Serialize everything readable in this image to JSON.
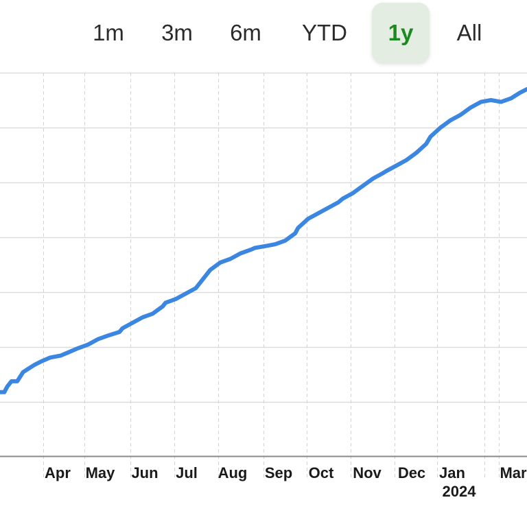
{
  "range_selector": {
    "options": [
      {
        "label": "1m",
        "active": false
      },
      {
        "label": "3m",
        "active": false
      },
      {
        "label": "6m",
        "active": false
      },
      {
        "label": "YTD",
        "active": false
      },
      {
        "label": "1y",
        "active": true
      },
      {
        "label": "All",
        "active": false
      }
    ],
    "active_color": "#1d8a21",
    "active_background": "#e3ede2"
  },
  "chart_data": {
    "type": "line",
    "title": "",
    "xlabel": "",
    "ylabel": "",
    "y_axis_labels_visible": false,
    "grid": true,
    "line_color": "#3b86e0",
    "x_tick_labels": [
      "Apr",
      "May",
      "Jun",
      "Jul",
      "Aug",
      "Sep",
      "Oct",
      "Nov",
      "Dec",
      "Jan",
      "Mar"
    ],
    "year_label": {
      "text": "2024",
      "under": "Jan"
    },
    "series": [
      {
        "x": [
          "2023-03-08",
          "2023-03-11",
          "2023-03-13",
          "2023-03-16",
          "2023-03-20",
          "2023-03-24",
          "2023-03-28",
          "2023-04-01",
          "2023-04-06",
          "2023-04-12",
          "2023-04-19",
          "2023-04-25",
          "2023-05-01",
          "2023-05-08",
          "2023-05-15",
          "2023-05-22",
          "2023-05-30",
          "2023-06-01",
          "2023-06-08",
          "2023-06-15",
          "2023-06-22",
          "2023-06-29",
          "2023-07-01",
          "2023-07-08",
          "2023-07-15",
          "2023-07-22",
          "2023-07-29",
          "2023-08-01",
          "2023-08-08",
          "2023-08-15",
          "2023-08-22",
          "2023-08-29",
          "2023-09-01",
          "2023-09-08",
          "2023-09-15",
          "2023-09-22",
          "2023-09-29",
          "2023-10-01",
          "2023-10-08",
          "2023-10-15",
          "2023-10-22",
          "2023-10-29",
          "2023-11-01",
          "2023-11-08",
          "2023-11-15",
          "2023-11-22",
          "2023-11-29",
          "2023-12-01",
          "2023-12-08",
          "2023-12-15",
          "2023-12-22",
          "2023-12-29",
          "2024-01-01",
          "2024-01-08",
          "2024-01-15",
          "2024-01-22",
          "2024-01-29",
          "2024-02-05",
          "2024-02-12",
          "2024-02-19",
          "2024-02-26",
          "2024-03-03",
          "2024-03-08"
        ],
        "y": [
          3.5,
          3.5,
          3.8,
          4.1,
          4.1,
          4.6,
          4.8,
          5.0,
          5.2,
          5.4,
          5.5,
          5.7,
          5.9,
          6.1,
          6.4,
          6.6,
          6.8,
          7.0,
          7.3,
          7.6,
          7.8,
          8.2,
          8.4,
          8.6,
          8.9,
          9.2,
          9.9,
          10.2,
          10.6,
          10.8,
          11.1,
          11.3,
          11.4,
          11.5,
          11.6,
          11.8,
          12.2,
          12.5,
          13.0,
          13.3,
          13.6,
          13.9,
          14.1,
          14.4,
          14.8,
          15.2,
          15.5,
          15.6,
          15.9,
          16.2,
          16.6,
          17.1,
          17.5,
          18.0,
          18.4,
          18.7,
          19.1,
          19.4,
          19.5,
          19.4,
          19.6,
          19.9,
          20.1
        ]
      }
    ],
    "xlim": [
      "2023-03-08",
      "2024-03-08"
    ],
    "ylim": [
      0,
      21
    ]
  }
}
